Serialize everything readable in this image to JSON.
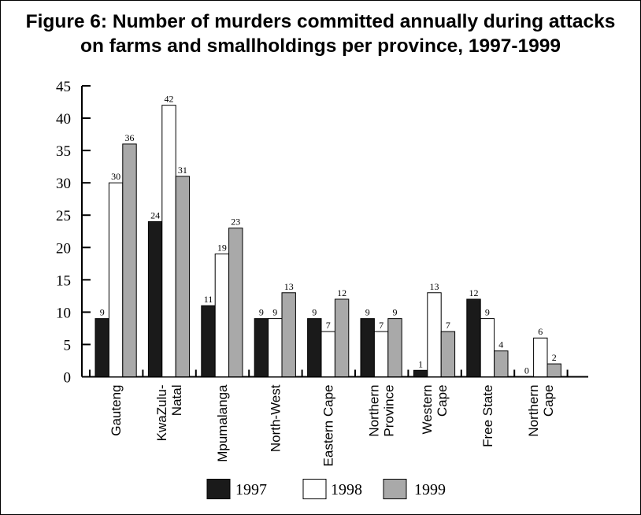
{
  "chart_data": {
    "type": "bar",
    "title_lines": [
      "Figure 6: Number of murders committed annually during attacks",
      "on farms and smallholdings per province, 1997-1999"
    ],
    "xlabel": "",
    "ylabel": "",
    "ylim": [
      0,
      45
    ],
    "yticks": [
      0,
      5,
      10,
      15,
      20,
      25,
      30,
      35,
      40,
      45
    ],
    "categories": [
      [
        "Gauteng"
      ],
      [
        "KwaZulu-",
        "Natal"
      ],
      [
        "Mpumalanga"
      ],
      [
        "North-West"
      ],
      [
        "Eastern Cape"
      ],
      [
        "Northern",
        "Province"
      ],
      [
        "Western",
        "Cape"
      ],
      [
        "Free State"
      ],
      [
        "Northern",
        "Cape"
      ]
    ],
    "series": [
      {
        "name": "1997",
        "color": "#1a1a1a",
        "values": [
          9,
          24,
          11,
          9,
          9,
          9,
          1,
          12,
          0
        ]
      },
      {
        "name": "1998",
        "color": "#ffffff",
        "values": [
          30,
          42,
          19,
          9,
          7,
          7,
          13,
          9,
          6
        ]
      },
      {
        "name": "1999",
        "color": "#a9a9a9",
        "values": [
          36,
          31,
          23,
          13,
          12,
          9,
          7,
          4,
          2
        ]
      }
    ],
    "data_labels": true,
    "grid": false,
    "legend_position": "bottom"
  }
}
